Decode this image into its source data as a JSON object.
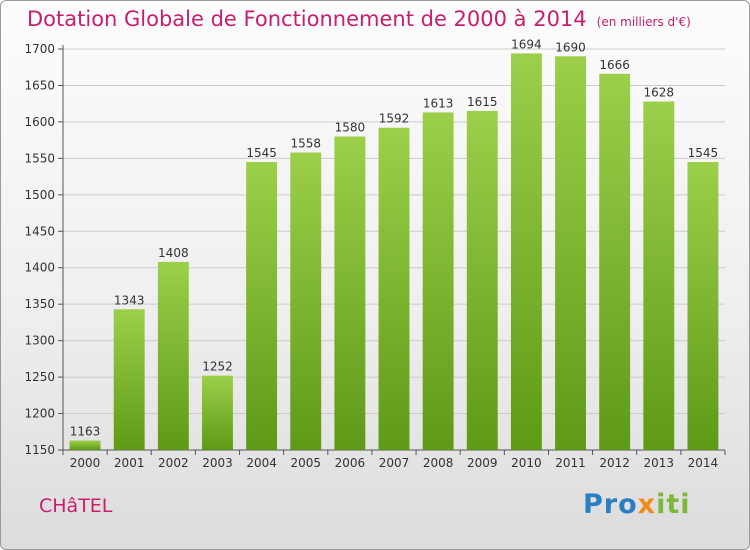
{
  "chart_data": {
    "type": "bar",
    "title": "Dotation Globale de Fonctionnement de 2000 à 2014",
    "unit_note": "(en milliers d'€)",
    "categories": [
      "2000",
      "2001",
      "2002",
      "2003",
      "2004",
      "2005",
      "2006",
      "2007",
      "2008",
      "2009",
      "2010",
      "2011",
      "2012",
      "2013",
      "2014"
    ],
    "values": [
      1163,
      1343,
      1408,
      1252,
      1545,
      1558,
      1580,
      1592,
      1613,
      1615,
      1694,
      1690,
      1666,
      1628,
      1545
    ],
    "ylim": [
      1150,
      1700
    ],
    "yticks": [
      1150,
      1200,
      1250,
      1300,
      1350,
      1400,
      1450,
      1500,
      1550,
      1600,
      1650,
      1700
    ],
    "grid": true,
    "bar_color_top": "#9ccf4a",
    "bar_color_bottom": "#5e9a16"
  },
  "footer": {
    "town": "CHâTEL",
    "logo_parts": [
      "Pro",
      "x",
      "iti"
    ]
  }
}
